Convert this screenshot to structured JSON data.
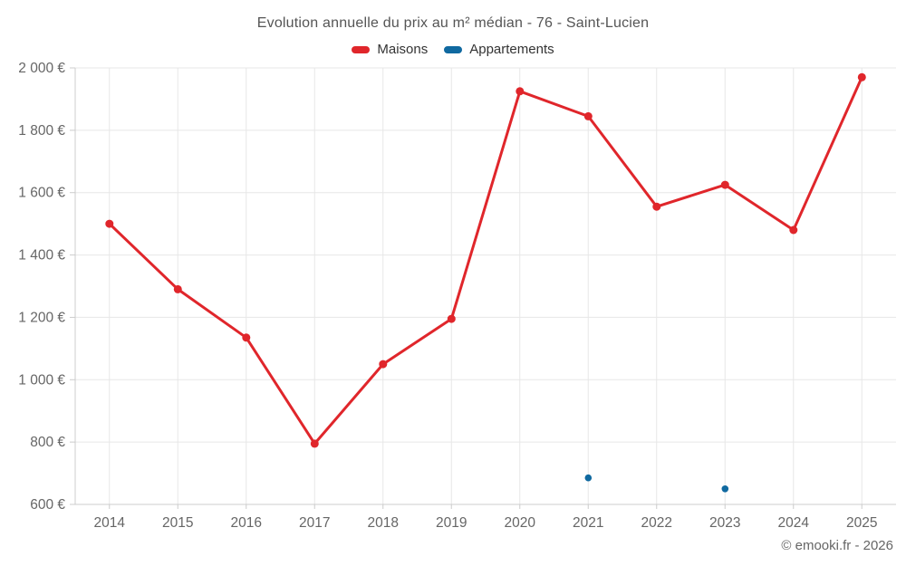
{
  "header": {
    "title": "Evolution annuelle du prix au m² médian - 76 - Saint-Lucien"
  },
  "legend": {
    "items": [
      {
        "label": "Maisons",
        "color": "#e0262b"
      },
      {
        "label": "Appartements",
        "color": "#1069a0"
      }
    ]
  },
  "footer": {
    "credit": "© emooki.fr - 2026"
  },
  "colors": {
    "maisons": "#e0262b",
    "appartements": "#1069a0",
    "gridline": "#e7e7e7",
    "axis_line": "#cccccc",
    "axis_label": "#666666",
    "title_text": "#555555",
    "legend_text": "#333333",
    "credit_text": "#666666",
    "background": "#ffffff"
  },
  "chart_data": {
    "type": "line",
    "title": "Evolution annuelle du prix au m² médian - 76 - Saint-Lucien",
    "xlabel": "",
    "ylabel": "",
    "categories": [
      "2014",
      "2015",
      "2016",
      "2017",
      "2018",
      "2019",
      "2020",
      "2021",
      "2022",
      "2023",
      "2024",
      "2025"
    ],
    "series": [
      {
        "name": "Maisons",
        "color": "#e0262b",
        "marker_radius": 4.5,
        "line_width": 3,
        "values": [
          1500,
          1290,
          1135,
          795,
          1050,
          1195,
          1925,
          1845,
          1555,
          1625,
          1480,
          1970
        ]
      },
      {
        "name": "Appartements",
        "color": "#1069a0",
        "marker_radius": 3.8,
        "line_width": 3,
        "values": [
          null,
          null,
          null,
          null,
          null,
          null,
          null,
          685,
          null,
          650,
          null,
          null
        ]
      }
    ],
    "ylim": [
      600,
      2000
    ],
    "yticks": [
      600,
      800,
      1000,
      1200,
      1400,
      1600,
      1800,
      2000
    ],
    "ytick_labels": [
      "600 €",
      "800 €",
      "1 000 €",
      "1 200 €",
      "1 400 €",
      "1 600 €",
      "1 800 €",
      "2 000 €"
    ],
    "grid": true,
    "legend_position": "top",
    "currency_suffix": "€"
  }
}
